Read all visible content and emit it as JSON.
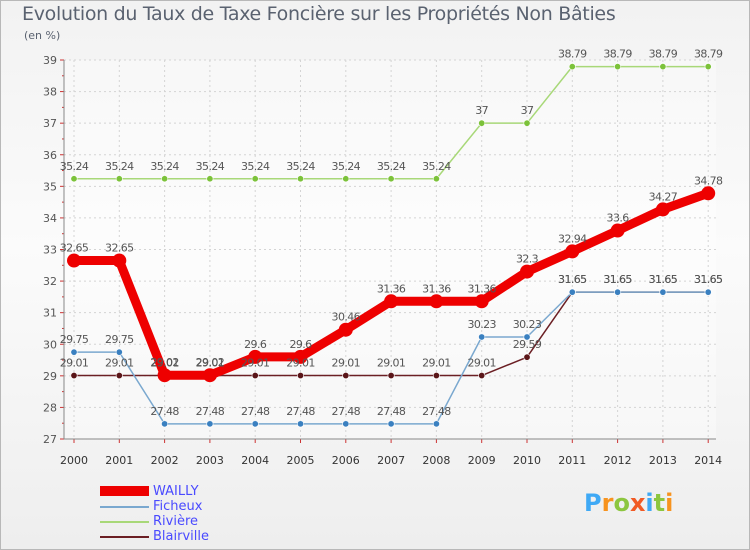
{
  "title": "Evolution du Taux de Taxe Foncière sur les Propriétés Non Bâties",
  "subtitle": "(en %)",
  "logo": {
    "text": "Proxiti",
    "colors": [
      "#3fa9f5",
      "#f7931e",
      "#8cc63f",
      "#f15a24",
      "#3fa9f5",
      "#8cc63f",
      "#f7931e"
    ]
  },
  "chart_data": {
    "type": "line",
    "x": [
      "2000",
      "2001",
      "2002",
      "2003",
      "2004",
      "2005",
      "2006",
      "2007",
      "2008",
      "2009",
      "2010",
      "2011",
      "2012",
      "2013",
      "2014"
    ],
    "ylim": [
      27,
      39
    ],
    "yticks": [
      "27",
      "28",
      "29",
      "30",
      "31",
      "32",
      "33",
      "34",
      "35",
      "36",
      "37",
      "38",
      "39"
    ],
    "legend_position": "bottom-left",
    "series": [
      {
        "name": "Blairville",
        "color": "#6b1f24",
        "point_color": "#5a1518",
        "values": [
          29.01,
          29.01,
          29.01,
          29.01,
          29.01,
          29.01,
          29.01,
          29.01,
          29.01,
          29.01,
          29.59,
          31.65,
          31.65,
          31.65,
          31.65
        ],
        "labels": [
          "29.01",
          "29.01",
          "29.01",
          "29.01",
          "29.01",
          "29.01",
          "29.01",
          "29.01",
          "29.01",
          "29.01",
          "29.59",
          "31.65",
          "31.65",
          "31.65",
          "31.65"
        ]
      },
      {
        "name": "Ficheux",
        "color": "#7aa8cf",
        "point_color": "#3a80c0",
        "values": [
          29.75,
          29.75,
          27.48,
          27.48,
          27.48,
          27.48,
          27.48,
          27.48,
          27.48,
          30.23,
          30.23,
          31.65,
          31.65,
          31.65,
          31.65
        ],
        "labels": [
          "29.75",
          "29.75",
          "27.48",
          "27.48",
          "27.48",
          "27.48",
          "27.48",
          "27.48",
          "27.48",
          "30.23",
          "30.23",
          "31.65",
          "31.65",
          "31.65",
          "31.65"
        ]
      },
      {
        "name": "Rivière",
        "color": "#a8d878",
        "point_color": "#7cc23a",
        "values": [
          35.24,
          35.24,
          35.24,
          35.24,
          35.24,
          35.24,
          35.24,
          35.24,
          35.24,
          37,
          37,
          38.79,
          38.79,
          38.79,
          38.79
        ],
        "labels": [
          "35.24",
          "35.24",
          "35.24",
          "35.24",
          "35.24",
          "35.24",
          "35.24",
          "35.24",
          "35.24",
          "37",
          "37",
          "38.79",
          "38.79",
          "38.79",
          "38.79"
        ]
      },
      {
        "name": "WAILLY",
        "color": "#ee0000",
        "point_color": "#ee0000",
        "values": [
          32.65,
          32.65,
          29.02,
          29.02,
          29.6,
          29.6,
          30.46,
          31.36,
          31.36,
          31.36,
          32.3,
          32.94,
          33.6,
          34.27,
          34.78
        ],
        "labels": [
          "32.65",
          "32.65",
          "29.02",
          "29.02",
          "29.6",
          "29.6",
          "30.46",
          "31.36",
          "31.36",
          "31.36",
          "32.3",
          "32.94",
          "33.6",
          "34.27",
          "34.78"
        ]
      }
    ],
    "legend": [
      "WAILLY",
      "Ficheux",
      "Rivière",
      "Blairville"
    ]
  }
}
